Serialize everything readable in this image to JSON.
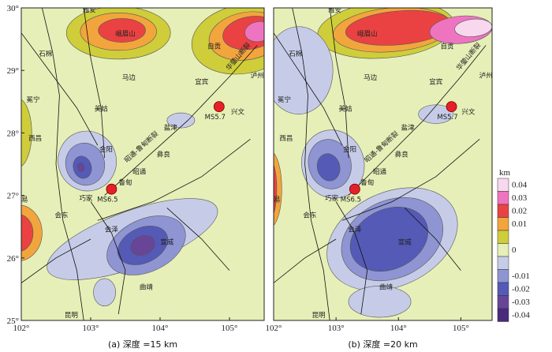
{
  "panels": [
    {
      "id": "a",
      "caption": "(a) 深度 =15 km",
      "x_ticks": [
        "102°",
        "103°",
        "104°",
        "105°"
      ],
      "y_ticks": [
        "30°",
        "29°",
        "28°",
        "27°",
        "26°",
        "25°"
      ],
      "places": [
        {
          "name": "雅安",
          "lon": 102.98,
          "lat": 29.93
        },
        {
          "name": "峨眉山",
          "lon": 103.5,
          "lat": 29.55
        },
        {
          "name": "石棉",
          "lon": 102.35,
          "lat": 29.23
        },
        {
          "name": "自贡",
          "lon": 104.78,
          "lat": 29.35
        },
        {
          "name": "泸州",
          "lon": 105.4,
          "lat": 28.88
        },
        {
          "name": "马边",
          "lon": 103.55,
          "lat": 28.85
        },
        {
          "name": "宜宾",
          "lon": 104.6,
          "lat": 28.78
        },
        {
          "name": "冕宁",
          "lon": 102.17,
          "lat": 28.5
        },
        {
          "name": "美姑",
          "lon": 103.15,
          "lat": 28.35
        },
        {
          "name": "兴文",
          "lon": 105.12,
          "lat": 28.3
        },
        {
          "name": "盐津",
          "lon": 104.15,
          "lat": 28.05
        },
        {
          "name": "西昌",
          "lon": 102.2,
          "lat": 27.88
        },
        {
          "name": "金阳",
          "lon": 103.22,
          "lat": 27.7
        },
        {
          "name": "彝良",
          "lon": 104.05,
          "lat": 27.62
        },
        {
          "name": "昭通",
          "lon": 103.7,
          "lat": 27.34
        },
        {
          "name": "鲁甸",
          "lon": 103.5,
          "lat": 27.17
        },
        {
          "name": "巧家",
          "lon": 102.93,
          "lat": 26.92
        },
        {
          "name": "米易",
          "lon": 102.0,
          "lat": 26.9
        },
        {
          "name": "会东",
          "lon": 102.58,
          "lat": 26.65
        },
        {
          "name": "会泽",
          "lon": 103.3,
          "lat": 26.42
        },
        {
          "name": "宣威",
          "lon": 104.1,
          "lat": 26.22
        },
        {
          "name": "曲靖",
          "lon": 103.8,
          "lat": 25.5
        },
        {
          "name": "昆明",
          "lon": 102.72,
          "lat": 25.05
        }
      ],
      "quakes": [
        {
          "label": "MS5.7",
          "lon": 104.85,
          "lat": 28.42
        },
        {
          "label": "MS6.5",
          "lon": 103.3,
          "lat": 27.1
        }
      ],
      "fault_labels": [
        {
          "text": "昭通-鲁甸断裂",
          "lon": 103.75,
          "lat": 27.75,
          "angle": -42
        },
        {
          "text": "华蓥山断裂",
          "lon": 105.15,
          "lat": 29.2,
          "angle": -50
        }
      ]
    },
    {
      "id": "b",
      "caption": "(b) 深度 =20 km",
      "x_ticks": [
        "102°",
        "103°",
        "104°",
        "105°"
      ],
      "y_ticks": [],
      "places": [
        {
          "name": "雅安",
          "lon": 102.98,
          "lat": 29.93
        },
        {
          "name": "峨眉山",
          "lon": 103.5,
          "lat": 29.55
        },
        {
          "name": "石棉",
          "lon": 102.35,
          "lat": 29.23
        },
        {
          "name": "自贡",
          "lon": 104.78,
          "lat": 29.35
        },
        {
          "name": "泸州",
          "lon": 105.4,
          "lat": 28.88
        },
        {
          "name": "马边",
          "lon": 103.55,
          "lat": 28.85
        },
        {
          "name": "宜宾",
          "lon": 104.6,
          "lat": 28.78
        },
        {
          "name": "冕宁",
          "lon": 102.17,
          "lat": 28.5
        },
        {
          "name": "美姑",
          "lon": 103.15,
          "lat": 28.35
        },
        {
          "name": "兴文",
          "lon": 105.12,
          "lat": 28.3
        },
        {
          "name": "盐津",
          "lon": 104.15,
          "lat": 28.05
        },
        {
          "name": "西昌",
          "lon": 102.2,
          "lat": 27.88
        },
        {
          "name": "金阳",
          "lon": 103.22,
          "lat": 27.7
        },
        {
          "name": "彝良",
          "lon": 104.05,
          "lat": 27.62
        },
        {
          "name": "昭通",
          "lon": 103.7,
          "lat": 27.34
        },
        {
          "name": "鲁甸",
          "lon": 103.5,
          "lat": 27.17
        },
        {
          "name": "巧家",
          "lon": 102.93,
          "lat": 26.92
        },
        {
          "name": "米易",
          "lon": 102.0,
          "lat": 26.9
        },
        {
          "name": "会东",
          "lon": 102.58,
          "lat": 26.65
        },
        {
          "name": "会泽",
          "lon": 103.3,
          "lat": 26.42
        },
        {
          "name": "宣威",
          "lon": 104.1,
          "lat": 26.22
        },
        {
          "name": "曲靖",
          "lon": 103.8,
          "lat": 25.5
        },
        {
          "name": "昆明",
          "lon": 102.72,
          "lat": 25.05
        }
      ],
      "quakes": [
        {
          "label": "MS5.7",
          "lon": 104.85,
          "lat": 28.42
        },
        {
          "label": "MS6.5",
          "lon": 103.3,
          "lat": 27.1
        }
      ],
      "fault_labels": [
        {
          "text": "昭通-鲁甸断裂",
          "lon": 103.75,
          "lat": 27.75,
          "angle": -42
        },
        {
          "text": "华蓥山断裂",
          "lon": 105.15,
          "lat": 29.2,
          "angle": -50
        }
      ]
    }
  ],
  "legend": {
    "unit": "km",
    "entries": [
      {
        "label": "0.04",
        "color": "#f7d8ee"
      },
      {
        "label": "0.03",
        "color": "#ee74c0"
      },
      {
        "label": "0.02",
        "color": "#ea4242"
      },
      {
        "label": "0.01",
        "color": "#f2a53d"
      },
      {
        "label": "",
        "color": "#cfcd3a"
      },
      {
        "label": "0",
        "color": "#e6efb7"
      },
      {
        "label": "",
        "color": "#c6cce8"
      },
      {
        "label": "-0.01",
        "color": "#8f95d2"
      },
      {
        "label": "-0.02",
        "color": "#545ab6"
      },
      {
        "label": "-0.03",
        "color": "#684597"
      },
      {
        "label": "-0.04",
        "color": "#4a2a7c"
      }
    ]
  },
  "colors": {
    "background": "#e6efb7",
    "quake_fill": "#e6202a",
    "fault_line": "#111111"
  }
}
